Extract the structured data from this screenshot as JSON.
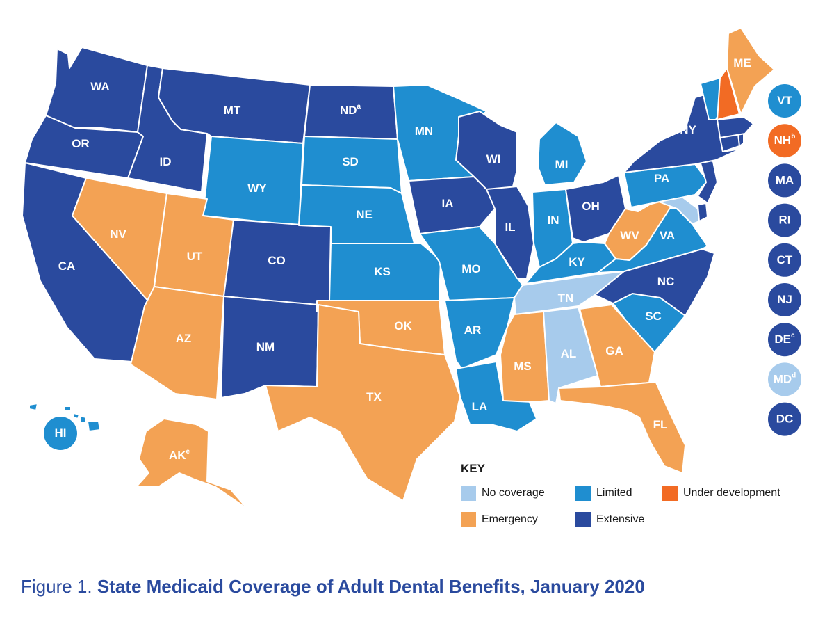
{
  "colors": {
    "no_coverage": "#a7cbec",
    "limited": "#1f8ed0",
    "under_development": "#f26b24",
    "emergency": "#f3a254",
    "extensive": "#2a4a9e"
  },
  "states": [
    {
      "abbr": "WA",
      "sup": "",
      "category": "extensive"
    },
    {
      "abbr": "OR",
      "sup": "",
      "category": "extensive"
    },
    {
      "abbr": "CA",
      "sup": "",
      "category": "extensive"
    },
    {
      "abbr": "ID",
      "sup": "",
      "category": "extensive"
    },
    {
      "abbr": "NV",
      "sup": "",
      "category": "emergency"
    },
    {
      "abbr": "MT",
      "sup": "",
      "category": "extensive"
    },
    {
      "abbr": "WY",
      "sup": "",
      "category": "limited"
    },
    {
      "abbr": "UT",
      "sup": "",
      "category": "emergency"
    },
    {
      "abbr": "AZ",
      "sup": "",
      "category": "emergency"
    },
    {
      "abbr": "CO",
      "sup": "",
      "category": "extensive"
    },
    {
      "abbr": "NM",
      "sup": "",
      "category": "extensive"
    },
    {
      "abbr": "ND",
      "sup": "a",
      "category": "extensive"
    },
    {
      "abbr": "SD",
      "sup": "",
      "category": "limited"
    },
    {
      "abbr": "NE",
      "sup": "",
      "category": "limited"
    },
    {
      "abbr": "KS",
      "sup": "",
      "category": "limited"
    },
    {
      "abbr": "OK",
      "sup": "",
      "category": "emergency"
    },
    {
      "abbr": "TX",
      "sup": "",
      "category": "emergency"
    },
    {
      "abbr": "MN",
      "sup": "",
      "category": "limited"
    },
    {
      "abbr": "IA",
      "sup": "",
      "category": "extensive"
    },
    {
      "abbr": "MO",
      "sup": "",
      "category": "limited"
    },
    {
      "abbr": "AR",
      "sup": "",
      "category": "limited"
    },
    {
      "abbr": "LA",
      "sup": "",
      "category": "limited"
    },
    {
      "abbr": "WI",
      "sup": "",
      "category": "extensive"
    },
    {
      "abbr": "IL",
      "sup": "",
      "category": "extensive"
    },
    {
      "abbr": "MI",
      "sup": "",
      "category": "limited"
    },
    {
      "abbr": "IN",
      "sup": "",
      "category": "limited"
    },
    {
      "abbr": "OH",
      "sup": "",
      "category": "extensive"
    },
    {
      "abbr": "KY",
      "sup": "",
      "category": "limited"
    },
    {
      "abbr": "TN",
      "sup": "",
      "category": "no_coverage"
    },
    {
      "abbr": "MS",
      "sup": "",
      "category": "emergency"
    },
    {
      "abbr": "AL",
      "sup": "",
      "category": "no_coverage"
    },
    {
      "abbr": "GA",
      "sup": "",
      "category": "emergency"
    },
    {
      "abbr": "FL",
      "sup": "",
      "category": "emergency"
    },
    {
      "abbr": "SC",
      "sup": "",
      "category": "limited"
    },
    {
      "abbr": "NC",
      "sup": "",
      "category": "extensive"
    },
    {
      "abbr": "VA",
      "sup": "",
      "category": "limited"
    },
    {
      "abbr": "WV",
      "sup": "",
      "category": "emergency"
    },
    {
      "abbr": "PA",
      "sup": "",
      "category": "limited"
    },
    {
      "abbr": "NY",
      "sup": "",
      "category": "extensive"
    },
    {
      "abbr": "ME",
      "sup": "",
      "category": "emergency"
    },
    {
      "abbr": "AK",
      "sup": "e",
      "category": "emergency"
    },
    {
      "abbr": "HI",
      "sup": "",
      "category": "limited"
    }
  ],
  "northeast_circles": [
    {
      "abbr": "VT",
      "sup": "",
      "category": "limited"
    },
    {
      "abbr": "NH",
      "sup": "b",
      "category": "under_development"
    },
    {
      "abbr": "MA",
      "sup": "",
      "category": "extensive"
    },
    {
      "abbr": "RI",
      "sup": "",
      "category": "extensive"
    },
    {
      "abbr": "CT",
      "sup": "",
      "category": "extensive"
    },
    {
      "abbr": "NJ",
      "sup": "",
      "category": "extensive"
    },
    {
      "abbr": "DE",
      "sup": "c",
      "category": "extensive"
    },
    {
      "abbr": "MD",
      "sup": "d",
      "category": "no_coverage"
    },
    {
      "abbr": "DC",
      "sup": "",
      "category": "extensive"
    }
  ],
  "key": {
    "title": "KEY",
    "items": [
      {
        "label": "No coverage",
        "category": "no_coverage"
      },
      {
        "label": "Limited",
        "category": "limited"
      },
      {
        "label": "Under development",
        "category": "under_development"
      },
      {
        "label": "Emergency",
        "category": "emergency"
      },
      {
        "label": "Extensive",
        "category": "extensive"
      }
    ]
  },
  "caption": {
    "prefix": "Figure 1.",
    "title": "State Medicaid Coverage of Adult Dental Benefits, January 2020"
  }
}
